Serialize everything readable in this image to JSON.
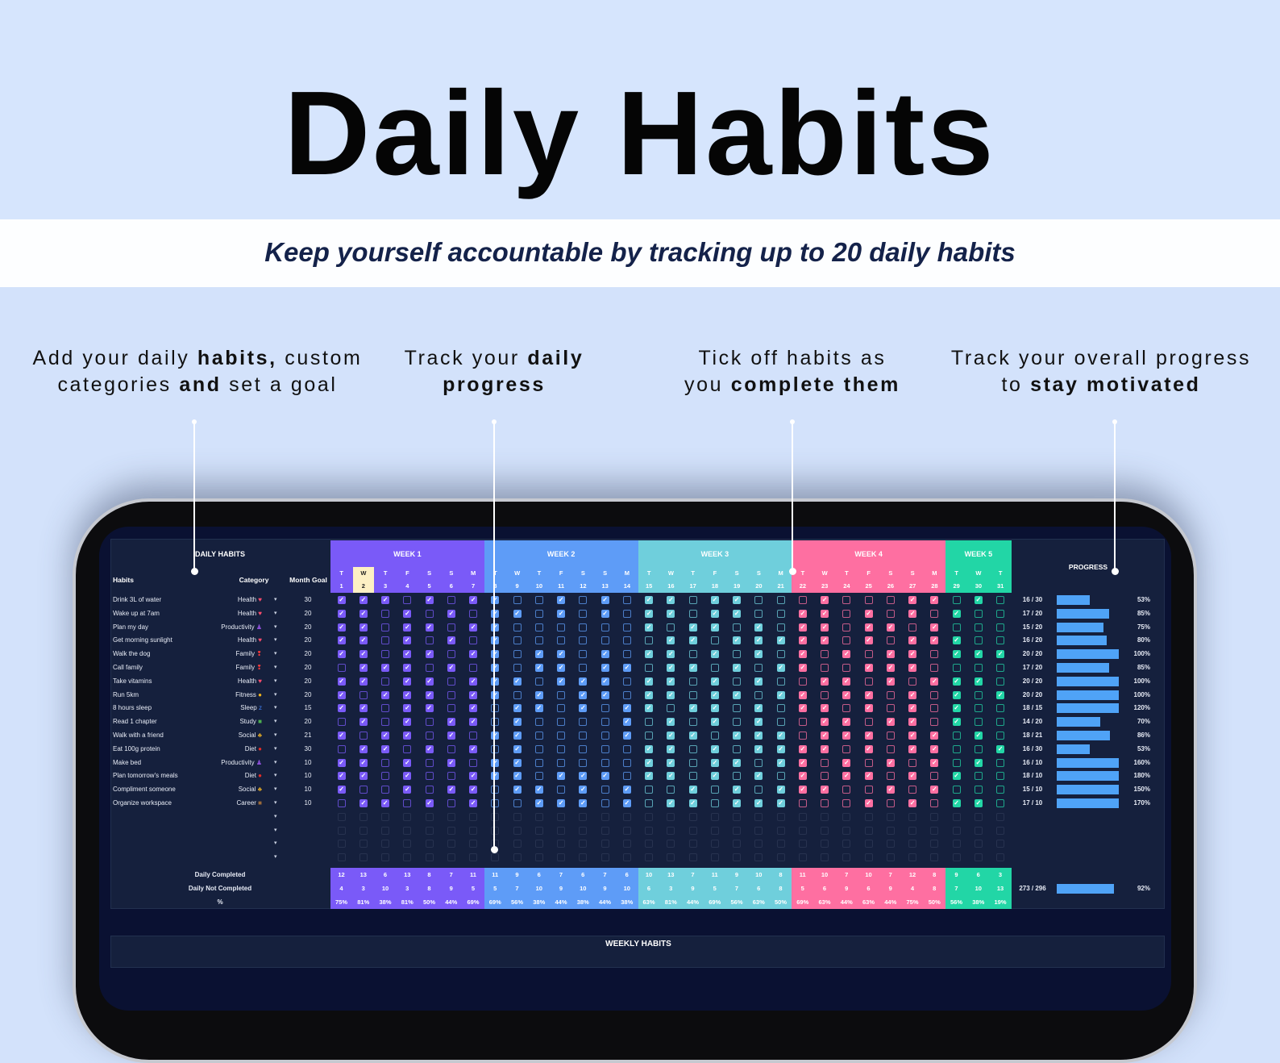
{
  "header": {
    "title": "Daily Habits",
    "subtitle": "Keep yourself accountable by tracking up to 20 daily habits"
  },
  "callouts": [
    {
      "line1_parts": [
        "Add your daily ",
        "habits,",
        " custom"
      ],
      "line2_parts": [
        "categories",
        " and ",
        "set a goal"
      ]
    },
    {
      "line1_parts": [
        "Track your ",
        "daily",
        ""
      ],
      "line2_parts": [
        "",
        "progress",
        ""
      ]
    },
    {
      "line1_parts": [
        "Tick off habits as",
        "",
        ""
      ],
      "line2_parts": [
        "you ",
        "complete them",
        ""
      ]
    },
    {
      "line1_parts": [
        "Track your overall progress",
        "",
        ""
      ],
      "line2_parts": [
        "to ",
        "stay motivated",
        ""
      ]
    }
  ],
  "sheet": {
    "title": "DAILY HABITS",
    "col_habits": "Habits",
    "col_category": "Category",
    "col_goal": "Month Goal",
    "progress_title": "PROGRESS",
    "today": 2,
    "weeks": [
      {
        "label": "WEEK 1",
        "color": "#7a5af8",
        "days": 7
      },
      {
        "label": "WEEK 2",
        "color": "#5e9cf7",
        "days": 7
      },
      {
        "label": "WEEK 3",
        "color": "#6fcfdc",
        "days": 7
      },
      {
        "label": "WEEK 4",
        "color": "#fe6fa1",
        "days": 7
      },
      {
        "label": "WEEK 5",
        "color": "#22d6a6",
        "days": 3
      }
    ],
    "day_letters": [
      "T",
      "W",
      "T",
      "F",
      "S",
      "S",
      "M",
      "T",
      "W",
      "T",
      "F",
      "S",
      "S",
      "M",
      "T",
      "W",
      "T",
      "F",
      "S",
      "S",
      "M",
      "T",
      "W",
      "T",
      "F",
      "S",
      "S",
      "M",
      "T",
      "W",
      "T"
    ],
    "category_icons": {
      "Health": {
        "icon": "heart-icon",
        "glyph": "♥",
        "color": "#ff4d6d"
      },
      "Productivity": {
        "icon": "person-icon",
        "glyph": "♟",
        "color": "#8b4fd6"
      },
      "Family": {
        "icon": "exclamation-heart-icon",
        "glyph": "❢",
        "color": "#ff3b3b"
      },
      "Fitness": {
        "icon": "flexed-bicep-icon",
        "glyph": "●",
        "color": "#f2b31b"
      },
      "Sleep": {
        "icon": "sleep-icon",
        "glyph": "z",
        "color": "#3f7ff0"
      },
      "Study": {
        "icon": "books-icon",
        "glyph": "■",
        "color": "#4caf50"
      },
      "Social": {
        "icon": "people-icon",
        "glyph": "♣",
        "color": "#d9a326"
      },
      "Diet": {
        "icon": "apple-icon",
        "glyph": "●",
        "color": "#e52d27"
      },
      "Career": {
        "icon": "briefcase-icon",
        "glyph": "■",
        "color": "#9a6a3a"
      }
    },
    "habits": [
      {
        "name": "Drink 3L of water",
        "category": "Health",
        "goal": "30",
        "done": "16 / 30",
        "pct": 53,
        "pct_label": "53%",
        "checks": "1110101100101011011000100011010"
      },
      {
        "name": "Wake up at 7am",
        "category": "Health",
        "goal": "20",
        "done": "17 / 20",
        "pct": 85,
        "pct_label": "85%",
        "checks": "1101010110101011011001101010100"
      },
      {
        "name": "Plan my day",
        "category": "Productivity",
        "goal": "20",
        "done": "15 / 20",
        "pct": 75,
        "pct_label": "75%",
        "checks": "1101101100000010110101101101000"
      },
      {
        "name": "Get morning sunlight",
        "category": "Health",
        "goal": "20",
        "done": "16 / 20",
        "pct": 80,
        "pct_label": "80%",
        "checks": "1101010100000001101111101011100"
      },
      {
        "name": "Walk the dog",
        "category": "Family",
        "goal": "20",
        "done": "20 / 20",
        "pct": 100,
        "pct_label": "100%",
        "checks": "1101101101101011010101010110111"
      },
      {
        "name": "Call family",
        "category": "Family",
        "goal": "20",
        "done": "17 / 20",
        "pct": 85,
        "pct_label": "85%",
        "checks": "0111010101101101101011001110000"
      },
      {
        "name": "Take vitamins",
        "category": "Health",
        "goal": "20",
        "done": "20 / 20",
        "pct": 100,
        "pct_label": "100%",
        "checks": "1101101110111011010100110101110"
      },
      {
        "name": "Run 5km",
        "category": "Fitness",
        "goal": "20",
        "done": "20 / 20",
        "pct": 100,
        "pct_label": "100%",
        "checks": "1011101101011011011011011010101"
      },
      {
        "name": "8 hours sleep",
        "category": "Sleep",
        "goal": "15",
        "done": "18 / 15",
        "pct": 120,
        "pct_label": "120%",
        "checks": "1101101011010110110101101010100"
      },
      {
        "name": "Read 1 chapter",
        "category": "Study",
        "goal": "20",
        "done": "14 / 20",
        "pct": 70,
        "pct_label": "70%",
        "checks": "0101011010000101010100110110100"
      },
      {
        "name": "Walk with a friend",
        "category": "Social",
        "goal": "21",
        "done": "18 / 21",
        "pct": 86,
        "pct_label": "86%",
        "checks": "1011010110000101101110111011010"
      },
      {
        "name": "Eat 100g protein",
        "category": "Diet",
        "goal": "30",
        "done": "16 / 30",
        "pct": 53,
        "pct_label": "53%",
        "checks": "0110101010000011010111101011001"
      },
      {
        "name": "Make bed",
        "category": "Productivity",
        "goal": "10",
        "done": "16 / 10",
        "pct": 160,
        "pct_label": "160%",
        "checks": "1101010110000011011011010101010"
      },
      {
        "name": "Plan tomorrow's meals",
        "category": "Diet",
        "goal": "10",
        "done": "18 / 10",
        "pct": 180,
        "pct_label": "180%",
        "checks": "1101001110111011010101011010100"
      },
      {
        "name": "Compliment someone",
        "category": "Social",
        "goal": "10",
        "done": "15 / 10",
        "pct": 150,
        "pct_label": "150%",
        "checks": "1001011011010100101011100101000"
      },
      {
        "name": "Organize workspace",
        "category": "Career",
        "goal": "10",
        "done": "17 / 10",
        "pct": 170,
        "pct_label": "170%",
        "checks": "0110101001110101101110001010110"
      }
    ],
    "empty_rows": 4,
    "stats": {
      "completed_label": "Daily Completed",
      "not_completed_label": "Daily Not Completed",
      "pct_label": "%",
      "completed": [
        "12",
        "13",
        "6",
        "13",
        "8",
        "7",
        "11",
        "11",
        "9",
        "6",
        "7",
        "6",
        "7",
        "6",
        "10",
        "13",
        "7",
        "11",
        "9",
        "10",
        "8",
        "11",
        "10",
        "7",
        "10",
        "7",
        "12",
        "8",
        "9",
        "6",
        "3"
      ],
      "not_completed": [
        "4",
        "3",
        "10",
        "3",
        "8",
        "9",
        "5",
        "5",
        "7",
        "10",
        "9",
        "10",
        "9",
        "10",
        "6",
        "3",
        "9",
        "5",
        "7",
        "6",
        "8",
        "5",
        "6",
        "9",
        "6",
        "9",
        "4",
        "8",
        "7",
        "10",
        "13"
      ],
      "percent": [
        "75%",
        "81%",
        "38%",
        "81%",
        "50%",
        "44%",
        "69%",
        "69%",
        "56%",
        "38%",
        "44%",
        "38%",
        "44%",
        "38%",
        "63%",
        "81%",
        "44%",
        "69%",
        "56%",
        "63%",
        "50%",
        "69%",
        "63%",
        "44%",
        "63%",
        "44%",
        "75%",
        "50%",
        "56%",
        "38%",
        "19%"
      ],
      "total_done": "273 / 296",
      "total_pct": 92,
      "total_pct_label": "92%"
    },
    "bar_color": "#4fa3f7",
    "next_section_title": "WEEKLY HABITS"
  }
}
